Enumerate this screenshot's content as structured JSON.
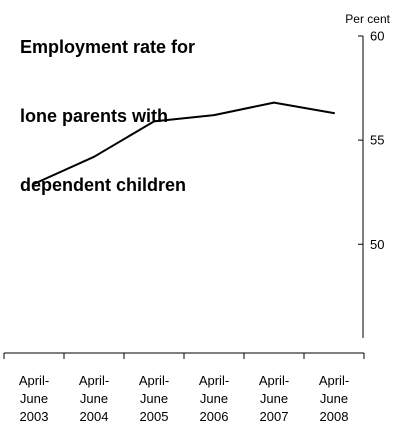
{
  "chart_data": {
    "type": "line",
    "title_lines": [
      "Employment rate for",
      "lone parents with",
      "dependent children"
    ],
    "unit_label": "Per cent",
    "categories": [
      [
        "April-",
        "June",
        "2003"
      ],
      [
        "April-",
        "June",
        "2004"
      ],
      [
        "April-",
        "June",
        "2005"
      ],
      [
        "April-",
        "June",
        "2006"
      ],
      [
        "April-",
        "June",
        "2007"
      ],
      [
        "April-",
        "June",
        "2008"
      ]
    ],
    "series": [
      {
        "values": [
          52.9,
          54.2,
          55.9,
          56.2,
          56.8,
          56.3
        ]
      }
    ],
    "ylim": [
      45.5,
      60
    ],
    "yticks": [
      50,
      55,
      60
    ],
    "y_axis_side": "right",
    "grid": false,
    "line_color": "#000000"
  }
}
